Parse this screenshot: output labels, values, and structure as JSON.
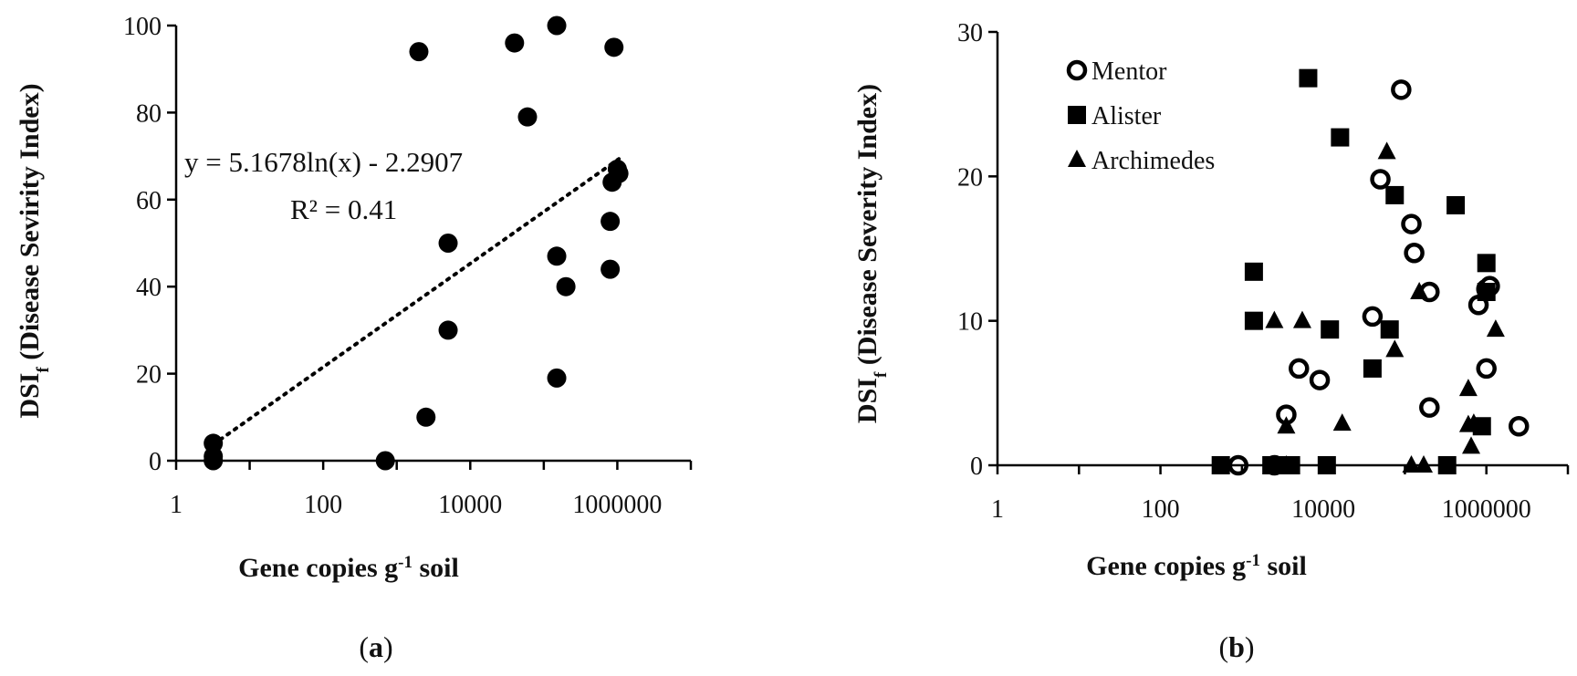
{
  "chart_data": [
    {
      "type": "scatter",
      "panel_label": "(a)",
      "panel_label_parts": {
        "open": "(",
        "letter": "a",
        "close": ")"
      },
      "xscale": "log",
      "xlim": [
        1,
        10000000
      ],
      "xticks": [
        1,
        100,
        10000,
        1000000
      ],
      "xtick_labels": [
        "1",
        "100",
        "10000",
        "1000000"
      ],
      "ylim": [
        0,
        100
      ],
      "yticks": [
        0,
        20,
        40,
        60,
        80,
        100
      ],
      "ytick_labels": [
        "0",
        "20",
        "40",
        "60",
        "80",
        "100"
      ],
      "xlabel": "Gene copies g⁻¹ soil",
      "ylabel": "DSIᶠ (Disease Sevirity Index)",
      "xlabel_parts": {
        "pre": "Gene copies g",
        "sup": "-1",
        "post": " soil"
      },
      "ylabel_parts": {
        "pre": "DSI",
        "sub": "f",
        "post": " (Disease Sevirity Index)"
      },
      "grid": false,
      "series": [
        {
          "marker": "filled-circle",
          "color": "#000000",
          "x": [
            3.2,
            3.2,
            3.2,
            700,
            2000,
            2500,
            5000,
            5000,
            40000,
            60000,
            150000,
            150000,
            150000,
            200000,
            800000,
            800000,
            850000,
            900000,
            1000000,
            1050000
          ],
          "y": [
            0,
            1,
            4,
            0,
            94,
            10,
            50,
            30,
            96,
            79,
            100,
            47,
            19,
            40,
            55,
            44,
            64,
            95,
            67,
            66
          ]
        }
      ],
      "trendline": {
        "style": "dotted",
        "equation": "y = 5.1678ln(x) - 2.2907",
        "r2_text": "R² = 0.41",
        "a": 5.1678,
        "b": -2.2907,
        "x_range": [
          3.2,
          1050000
        ]
      }
    },
    {
      "type": "scatter",
      "panel_label": "(b)",
      "panel_label_parts": {
        "open": "(",
        "letter": "b",
        "close": ")"
      },
      "xscale": "log",
      "xlim": [
        1,
        10000000
      ],
      "xticks": [
        1,
        100,
        10000,
        1000000
      ],
      "xtick_labels": [
        "1",
        "100",
        "10000",
        "1000000"
      ],
      "ylim": [
        0,
        30
      ],
      "yticks": [
        0,
        10,
        20,
        30
      ],
      "ytick_labels": [
        "0",
        "10",
        "20",
        "30"
      ],
      "xlabel": "Gene copies g⁻¹ soil",
      "ylabel": "DSIᶠ (Disease Severity Index)",
      "xlabel_parts": {
        "pre": "Gene copies g",
        "sup": "-1",
        "post": " soil"
      },
      "ylabel_parts": {
        "pre": "DSI",
        "sub": "f",
        "post": " (Disease Severity Index)"
      },
      "grid": false,
      "legend_position": "top-left",
      "series": [
        {
          "name": "Mentor",
          "marker": "open-circle",
          "color": "#000000",
          "x": [
            900,
            2500,
            3500,
            5000,
            9000,
            40000,
            50000,
            90000,
            120000,
            130000,
            200000,
            200000,
            800000,
            1000000,
            1000000,
            1100000,
            2500000
          ],
          "y": [
            0,
            0,
            3.5,
            6.7,
            5.9,
            10.3,
            19.8,
            26,
            16.7,
            14.7,
            12,
            4,
            11.1,
            12.2,
            6.7,
            12.4,
            2.7
          ]
        },
        {
          "name": "Alister",
          "marker": "filled-square",
          "color": "#000000",
          "x": [
            550,
            1400,
            1400,
            2300,
            3000,
            4000,
            6500,
            11000,
            12000,
            16000,
            40000,
            65000,
            75000,
            330000,
            420000,
            880000,
            1000000,
            1000000
          ],
          "y": [
            0,
            13.4,
            10,
            0,
            0,
            0,
            26.8,
            0,
            9.4,
            22.7,
            6.7,
            9.4,
            18.7,
            0,
            18,
            2.7,
            12,
            14
          ]
        },
        {
          "name": "Archimedes",
          "marker": "filled-triangle",
          "color": "#000000",
          "x": [
            2500,
            3500,
            3500,
            5500,
            17000,
            60000,
            75000,
            120000,
            150000,
            170000,
            600000,
            600000,
            650000,
            700000,
            1300000
          ],
          "y": [
            10,
            0,
            2.7,
            10,
            2.9,
            21.7,
            8,
            0,
            12,
            0,
            5.3,
            2.8,
            1.3,
            2.9,
            9.4
          ]
        }
      ]
    }
  ]
}
